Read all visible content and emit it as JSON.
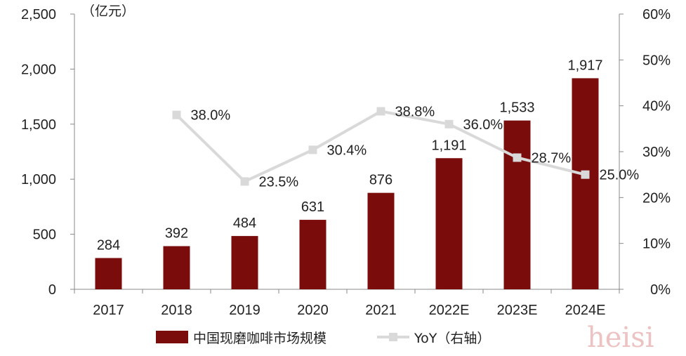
{
  "chart_data": {
    "type": "bar+line",
    "unit_label": "（亿元）",
    "categories": [
      "2017",
      "2018",
      "2019",
      "2020",
      "2021",
      "2022E",
      "2023E",
      "2024E"
    ],
    "series": [
      {
        "name": "中国现磨咖啡市场规模",
        "type": "bar",
        "axis": "left",
        "color": "#7a0c0c",
        "values": [
          284,
          392,
          484,
          631,
          876,
          1191,
          1533,
          1917
        ],
        "labels": [
          "284",
          "392",
          "484",
          "631",
          "876",
          "1,191",
          "1,533",
          "1,917"
        ]
      },
      {
        "name": "YoY（右轴）",
        "type": "line",
        "axis": "right",
        "color": "#d9d9d9",
        "values": [
          null,
          38.0,
          23.5,
          30.4,
          38.8,
          36.0,
          28.7,
          25.0
        ],
        "labels": [
          "",
          "38.0%",
          "23.5%",
          "30.4%",
          "38.8%",
          "36.0%",
          "28.7%",
          "25.0%"
        ]
      }
    ],
    "left_axis": {
      "min": 0,
      "max": 2500,
      "ticks": [
        "0",
        "500",
        "1,000",
        "1,500",
        "2,000",
        "2,500"
      ]
    },
    "right_axis": {
      "min": 0,
      "max": 60,
      "ticks": [
        "0%",
        "10%",
        "20%",
        "30%",
        "40%",
        "50%",
        "60%"
      ]
    },
    "grid": false,
    "legend_position": "bottom"
  },
  "watermark": "heisi"
}
